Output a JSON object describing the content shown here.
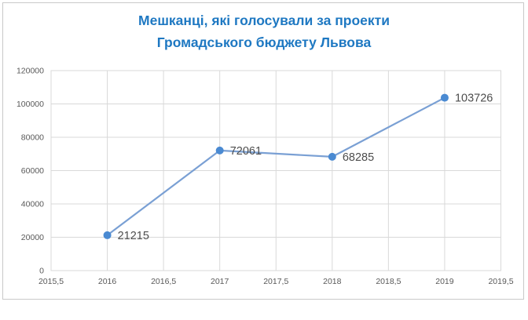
{
  "title": {
    "line1": "Мешканці, які голосували за проекти",
    "line2": "Громадського бюджету Львова"
  },
  "colors": {
    "title_text": "#1e78c2",
    "series_line": "#7aa0d4",
    "marker_fill": "#4a8ad2",
    "gridline": "#d9d9d9",
    "axis_text": "#595959",
    "data_label_text": "#4d4d4d",
    "card_border": "#c9c9c9",
    "background": "#ffffff"
  },
  "chart_data": {
    "type": "line",
    "title": "Мешканці, які голосували за проекти Громадського бюджету Львова",
    "x": [
      2016,
      2017,
      2018,
      2019
    ],
    "values": [
      21215,
      72061,
      68285,
      103726
    ],
    "data_labels": [
      "21215",
      "72061",
      "68285",
      "103726"
    ],
    "xlim": [
      2015.5,
      2019.5
    ],
    "ylim": [
      0,
      120000
    ],
    "x_tick_values": [
      2015.5,
      2016,
      2016.5,
      2017,
      2017.5,
      2018,
      2018.5,
      2019,
      2019.5
    ],
    "x_tick_labels": [
      "2015,5",
      "2016",
      "2016,5",
      "2017",
      "2017,5",
      "2018",
      "2018,5",
      "2019",
      "2019,5"
    ],
    "y_tick_values": [
      0,
      20000,
      40000,
      60000,
      80000,
      100000,
      120000
    ],
    "y_tick_labels": [
      "0",
      "20000",
      "40000",
      "60000",
      "80000",
      "100000",
      "120000"
    ],
    "grid": "both",
    "legend": "none",
    "xlabel": "",
    "ylabel": ""
  }
}
